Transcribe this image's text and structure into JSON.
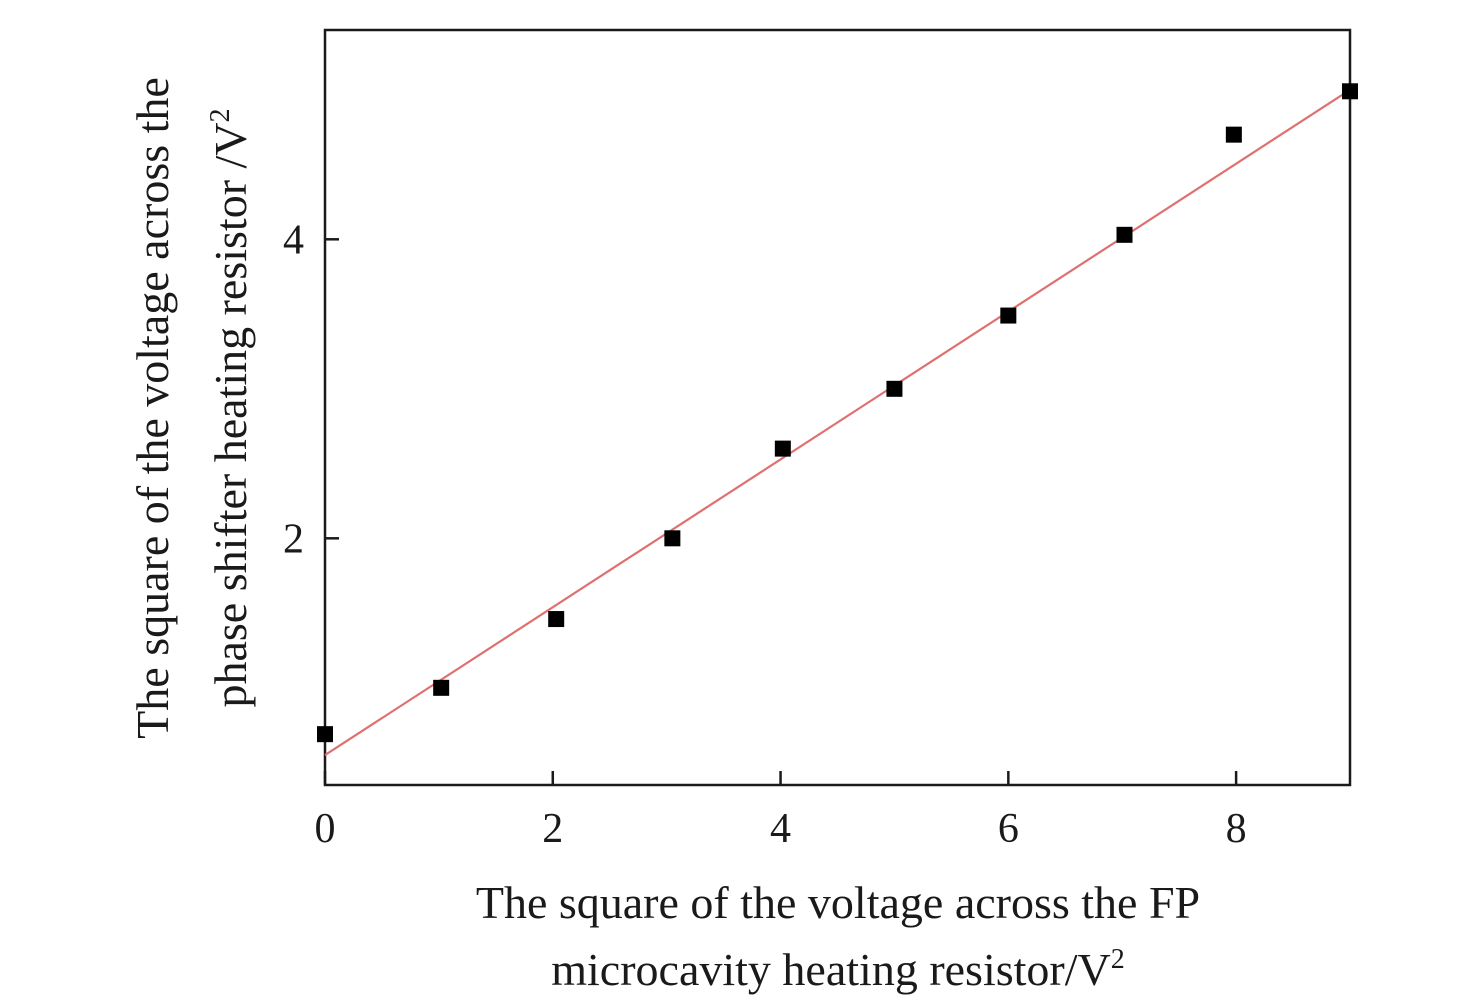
{
  "chart_data": {
    "type": "scatter",
    "xlabel": {
      "line1": "The square of the voltage across the FP",
      "line2": "microcavity heating resistor/V",
      "sup": "2"
    },
    "ylabel": {
      "line1": "The square of the voltage across the",
      "line2": "phase shifter heating resistor /V",
      "sup": "2"
    },
    "xlim": [
      0,
      9
    ],
    "ylim": [
      0.35,
      5.4
    ],
    "x_ticks": [
      0,
      2,
      4,
      6,
      8
    ],
    "y_ticks": [
      2,
      4
    ],
    "grid": false,
    "legend": "none",
    "series": [
      {
        "marker": "square",
        "color": "#000000",
        "points": [
          {
            "x": 0.0,
            "y": 0.69
          },
          {
            "x": 1.02,
            "y": 1.0
          },
          {
            "x": 2.03,
            "y": 1.46
          },
          {
            "x": 3.05,
            "y": 2.0
          },
          {
            "x": 4.02,
            "y": 2.6
          },
          {
            "x": 5.0,
            "y": 3.0
          },
          {
            "x": 6.0,
            "y": 3.49
          },
          {
            "x": 7.02,
            "y": 4.03
          },
          {
            "x": 7.98,
            "y": 4.7
          },
          {
            "x": 9.0,
            "y": 4.99
          }
        ]
      }
    ],
    "fit_line": {
      "color": "#e07070",
      "x": [
        0.0,
        9.0
      ],
      "y": [
        0.55,
        5.0
      ]
    }
  }
}
